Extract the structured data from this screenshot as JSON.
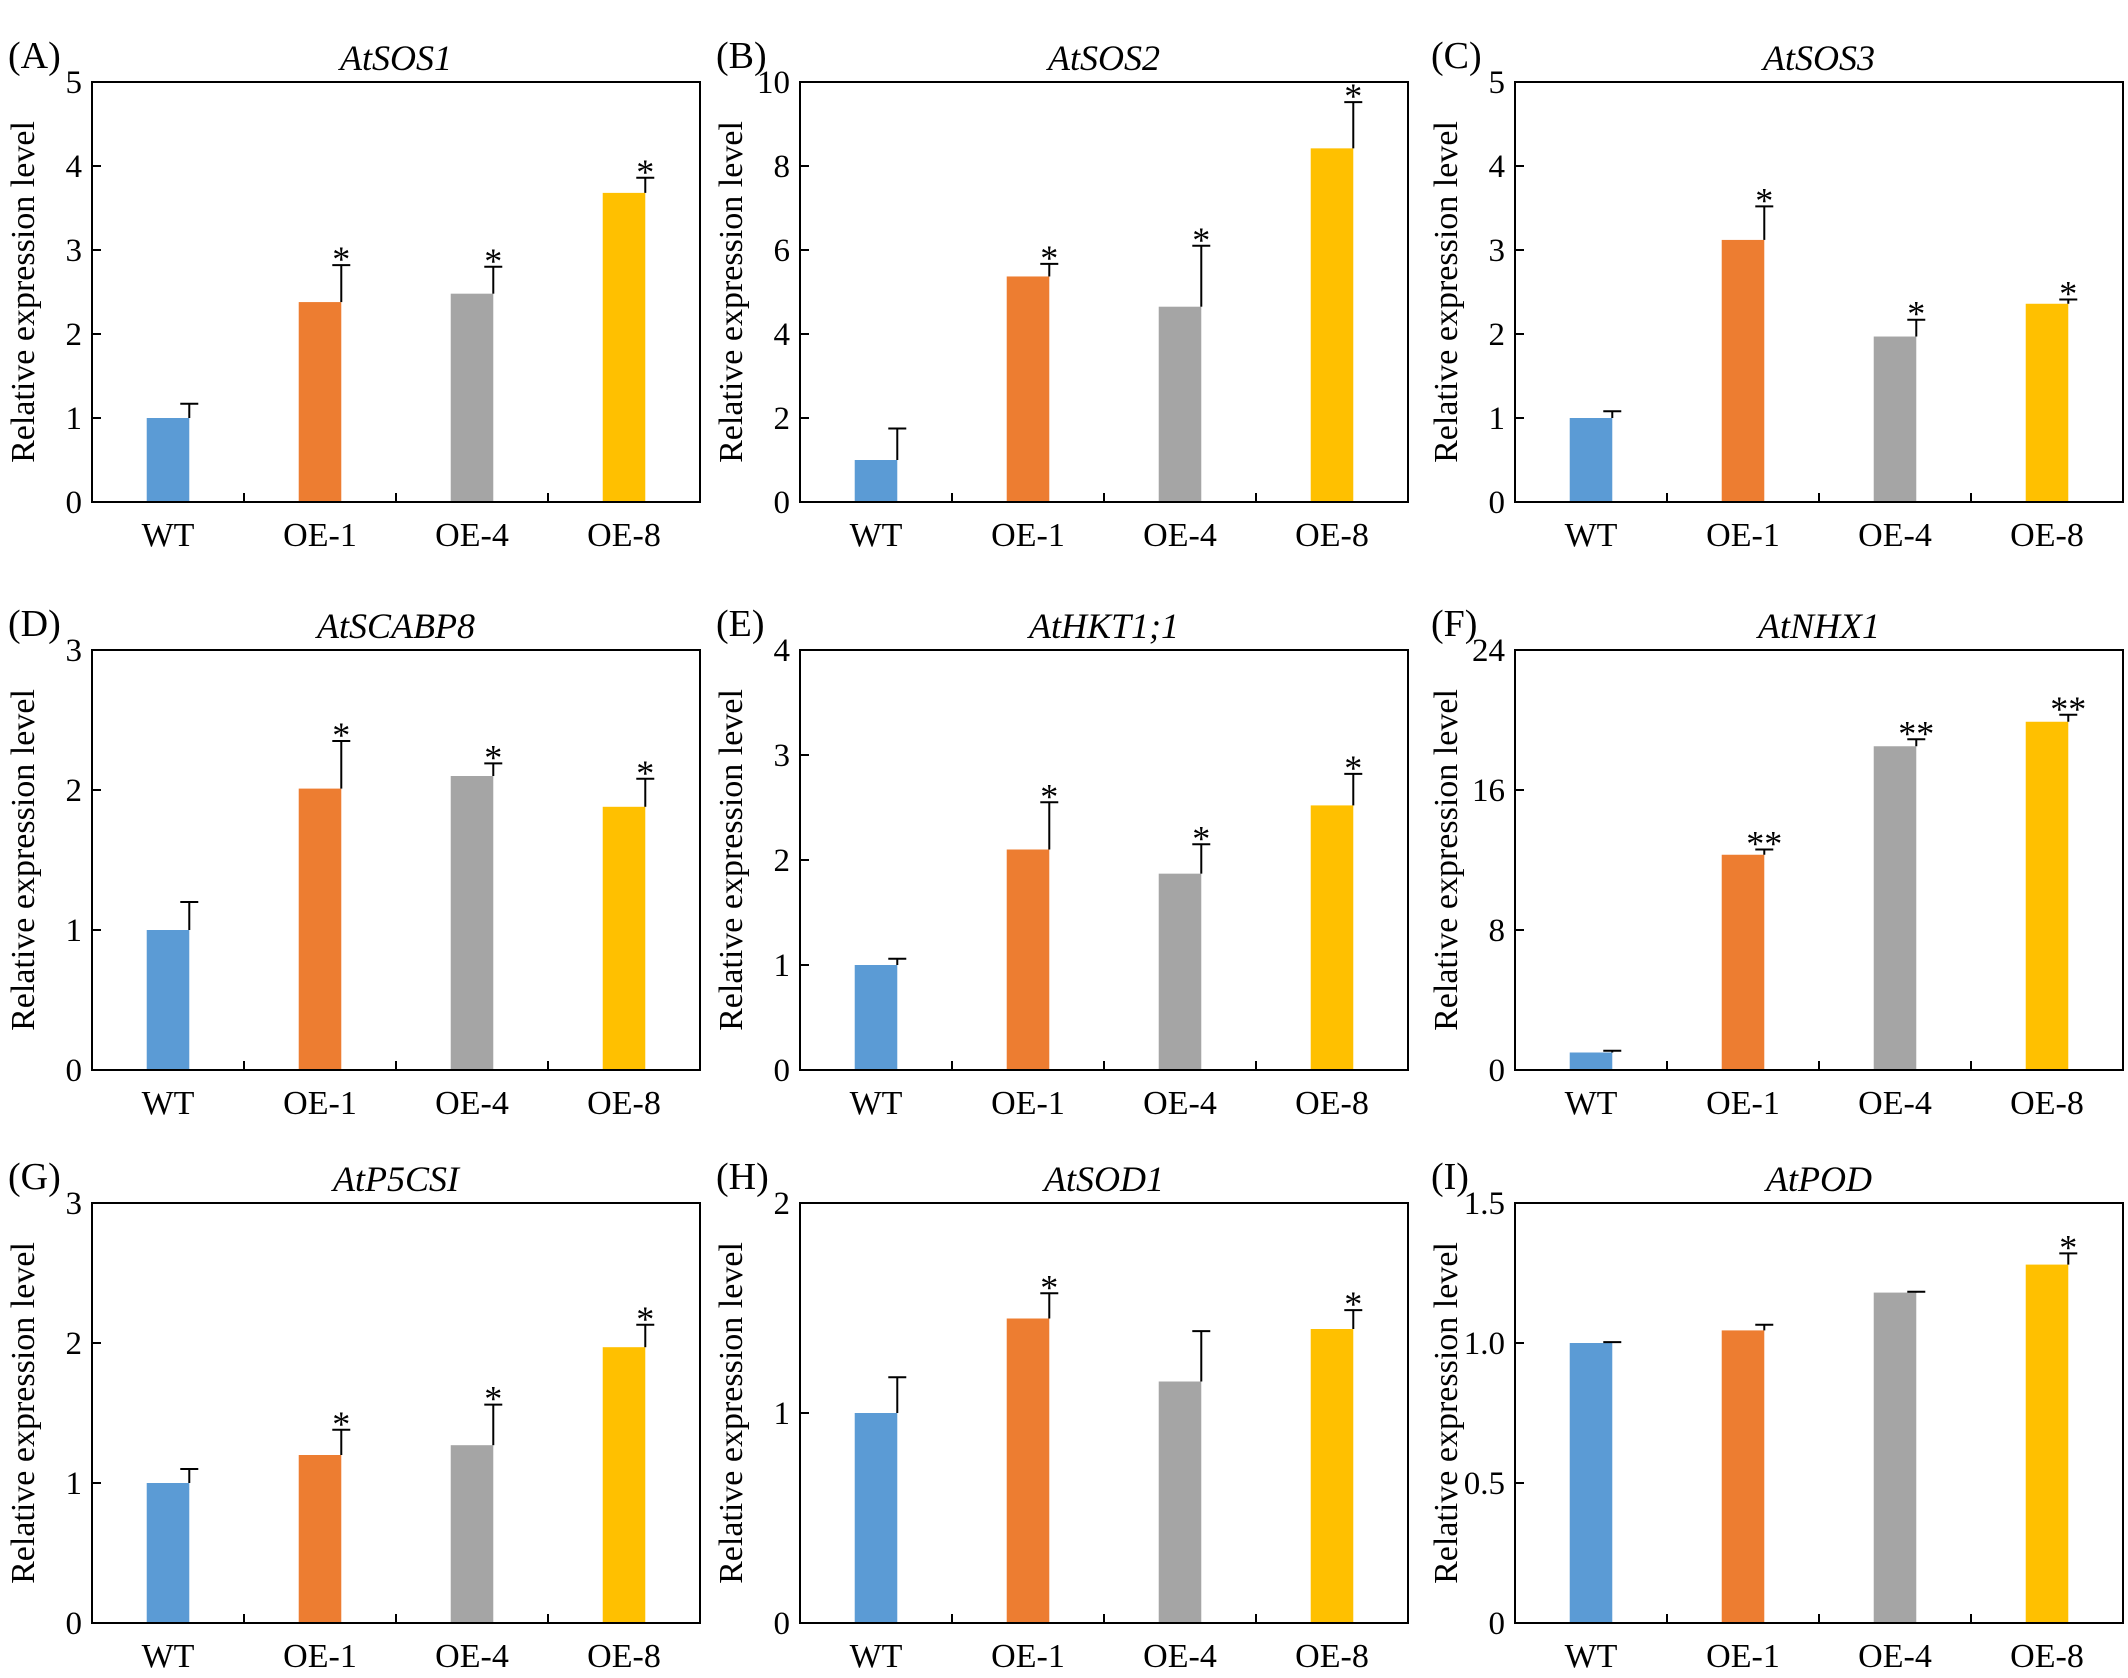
{
  "figure": {
    "colors": {
      "WT": "#5b9bd5",
      "OE-1": "#ed7d31",
      "OE-4": "#a5a5a5",
      "OE-8": "#ffc000"
    }
  },
  "chart_data": [
    {
      "panel": "(A)",
      "type": "bar",
      "title": "AtSOS1",
      "ylabel": "Relative expression level",
      "xlabel": "",
      "categories": [
        "WT",
        "OE-1",
        "OE-4",
        "OE-8"
      ],
      "values": [
        1.0,
        2.38,
        2.48,
        3.68
      ],
      "errors": [
        0.17,
        0.44,
        0.32,
        0.18
      ],
      "significance": [
        "",
        "*",
        "*",
        "*"
      ],
      "ylim": [
        0,
        5
      ],
      "yticks": [
        "0",
        "1",
        "2",
        "3",
        "4",
        "5"
      ],
      "grid": false
    },
    {
      "panel": "(B)",
      "type": "bar",
      "title": "AtSOS2",
      "ylabel": "Relative expression level",
      "xlabel": "",
      "categories": [
        "WT",
        "OE-1",
        "OE-4",
        "OE-8"
      ],
      "values": [
        1.0,
        5.37,
        4.65,
        8.42
      ],
      "errors": [
        0.75,
        0.3,
        1.45,
        1.1
      ],
      "significance": [
        "",
        "*",
        "*",
        "*"
      ],
      "ylim": [
        0,
        10
      ],
      "yticks": [
        "0",
        "2",
        "4",
        "6",
        "8",
        "10"
      ],
      "grid": false
    },
    {
      "panel": "(C)",
      "type": "bar",
      "title": "AtSOS3",
      "ylabel": "Relative expression level",
      "xlabel": "",
      "categories": [
        "WT",
        "OE-1",
        "OE-4",
        "OE-8"
      ],
      "values": [
        1.0,
        3.12,
        1.97,
        2.36
      ],
      "errors": [
        0.08,
        0.4,
        0.2,
        0.05
      ],
      "significance": [
        "",
        "*",
        "*",
        "*"
      ],
      "ylim": [
        0,
        5
      ],
      "yticks": [
        "0",
        "1",
        "2",
        "3",
        "4",
        "5"
      ],
      "grid": false
    },
    {
      "panel": "(D)",
      "type": "bar",
      "title": "AtSCABP8",
      "ylabel": "Relative expression level",
      "xlabel": "",
      "categories": [
        "WT",
        "OE-1",
        "OE-4",
        "OE-8"
      ],
      "values": [
        1.0,
        2.01,
        2.1,
        1.88
      ],
      "errors": [
        0.2,
        0.34,
        0.09,
        0.2
      ],
      "significance": [
        "",
        "*",
        "*",
        "*"
      ],
      "ylim": [
        0,
        3
      ],
      "yticks": [
        "0",
        "1",
        "2",
        "3"
      ],
      "grid": false
    },
    {
      "panel": "(E)",
      "type": "bar",
      "title": "AtHKT1;1",
      "ylabel": "Relative expression level",
      "xlabel": "",
      "categories": [
        "WT",
        "OE-1",
        "OE-4",
        "OE-8"
      ],
      "values": [
        1.0,
        2.1,
        1.87,
        2.52
      ],
      "errors": [
        0.06,
        0.45,
        0.28,
        0.3
      ],
      "significance": [
        "",
        "*",
        "*",
        "*"
      ],
      "ylim": [
        0,
        4
      ],
      "yticks": [
        "0",
        "1",
        "2",
        "3",
        "4"
      ],
      "grid": false
    },
    {
      "panel": "(F)",
      "type": "bar",
      "title": "AtNHX1",
      "ylabel": "Relative expression level",
      "xlabel": "",
      "categories": [
        "WT",
        "OE-1",
        "OE-4",
        "OE-8"
      ],
      "values": [
        1.0,
        12.3,
        18.5,
        19.9
      ],
      "errors": [
        0.1,
        0.3,
        0.4,
        0.4
      ],
      "significance": [
        "",
        "**",
        "**",
        "**"
      ],
      "ylim": [
        0,
        24
      ],
      "yticks": [
        "0",
        "8",
        "16",
        "24"
      ],
      "grid": false
    },
    {
      "panel": "(G)",
      "type": "bar",
      "title": "AtP5CSI",
      "ylabel": "Relative expression level",
      "xlabel": "",
      "categories": [
        "WT",
        "OE-1",
        "OE-4",
        "OE-8"
      ],
      "values": [
        1.0,
        1.2,
        1.27,
        1.97
      ],
      "errors": [
        0.1,
        0.18,
        0.29,
        0.16
      ],
      "significance": [
        "",
        "*",
        "*",
        "*"
      ],
      "ylim": [
        0,
        3
      ],
      "yticks": [
        "0",
        "1",
        "2",
        "3"
      ],
      "grid": false
    },
    {
      "panel": "(H)",
      "type": "bar",
      "title": "AtSOD1",
      "ylabel": "Relative expression level",
      "xlabel": "",
      "categories": [
        "WT",
        "OE-1",
        "OE-4",
        "OE-8"
      ],
      "values": [
        1.0,
        1.45,
        1.15,
        1.4
      ],
      "errors": [
        0.17,
        0.12,
        0.24,
        0.09
      ],
      "significance": [
        "",
        "*",
        "",
        "*"
      ],
      "ylim": [
        0,
        2
      ],
      "yticks": [
        "0",
        "1",
        "2"
      ],
      "grid": false
    },
    {
      "panel": "(I)",
      "type": "bar",
      "title": "AtPOD",
      "ylabel": "Relative expression level",
      "xlabel": "",
      "categories": [
        "WT",
        "OE-1",
        "OE-4",
        "OE-8"
      ],
      "values": [
        1.0,
        1.045,
        1.18,
        1.28
      ],
      "errors": [
        0.003,
        0.02,
        0.003,
        0.04
      ],
      "significance": [
        "",
        "",
        "",
        "*"
      ],
      "ylim": [
        0,
        1.5
      ],
      "yticks": [
        "0",
        "0.5",
        "1.0",
        "1.5"
      ],
      "grid": false
    }
  ]
}
